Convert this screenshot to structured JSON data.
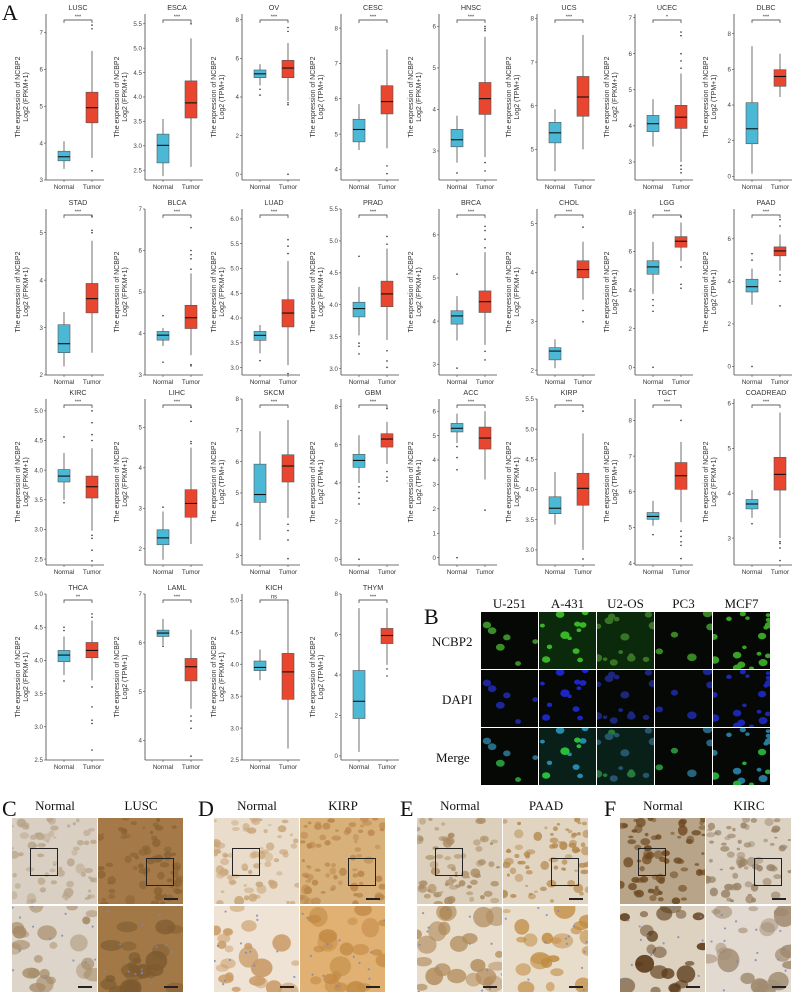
{
  "panels": {
    "A": "A",
    "B": "B",
    "C": "C",
    "D": "D",
    "E": "E",
    "F": "F"
  },
  "common": {
    "ylabel_main": "The expression of NCBP2",
    "ylabel_fpkm": "Log2 (FPKM+1)",
    "ylabel_tpm": "Log2 (TPM+1)",
    "x_categories": [
      "Normal",
      "Tumor"
    ],
    "colors": {
      "normal": "#4BB8D6",
      "tumor": "#E8462F"
    }
  },
  "chart_data": [
    {
      "type": "box",
      "title": "LUSC",
      "unit": "FPKM",
      "sig": "***",
      "ylim": [
        3,
        7.5
      ],
      "ticks": [
        3,
        4,
        5,
        6,
        7
      ],
      "normal": {
        "min": 3.3,
        "q1": 3.52,
        "med": 3.63,
        "q3": 3.78,
        "max": 4.05
      },
      "tumor": {
        "min": 3.6,
        "q1": 4.55,
        "med": 4.96,
        "q3": 5.38,
        "max": 6.5,
        "outliers": [
          7.1,
          7.2,
          3.25
        ]
      }
    },
    {
      "type": "box",
      "title": "ESCA",
      "unit": "FPKM",
      "sig": "***",
      "ylim": [
        2.3,
        5.7
      ],
      "ticks": [
        2.5,
        3.0,
        3.5,
        4.0,
        4.5,
        5.0,
        5.5
      ],
      "normal": {
        "min": 2.38,
        "q1": 2.65,
        "med": 3.01,
        "q3": 3.24,
        "max": 3.55
      },
      "tumor": {
        "min": 2.57,
        "q1": 3.57,
        "med": 3.88,
        "q3": 4.33,
        "max": 5.2,
        "outliers": [
          5.5
        ]
      }
    },
    {
      "type": "box",
      "title": "OV",
      "unit": "TPM",
      "sig": "***",
      "ylim": [
        -0.3,
        8.3
      ],
      "ticks": [
        0,
        2,
        4,
        6,
        8
      ],
      "normal": {
        "min": 4.6,
        "q1": 5.0,
        "med": 5.2,
        "q3": 5.4,
        "max": 5.7,
        "outliers": [
          4.4,
          4.1
        ]
      },
      "tumor": {
        "min": 3.8,
        "q1": 5.0,
        "med": 5.5,
        "q3": 5.9,
        "max": 6.8,
        "outliers": [
          7.6,
          7.4,
          3.6,
          3.7,
          0.0
        ]
      }
    },
    {
      "type": "box",
      "title": "CESC",
      "unit": "TPM",
      "sig": "***",
      "ylim": [
        3.7,
        8.4
      ],
      "ticks": [
        4,
        5,
        6,
        7,
        8
      ],
      "normal": {
        "min": 4.55,
        "q1": 4.78,
        "med": 5.13,
        "q3": 5.42,
        "max": 5.85
      },
      "tumor": {
        "min": 4.6,
        "q1": 5.57,
        "med": 5.92,
        "q3": 6.37,
        "max": 7.4,
        "outliers": [
          4.1,
          3.88
        ]
      }
    },
    {
      "type": "box",
      "title": "HNSC",
      "unit": "FPKM",
      "sig": "***",
      "ylim": [
        2.3,
        6.3
      ],
      "ticks": [
        3,
        4,
        5,
        6
      ],
      "normal": {
        "min": 2.72,
        "q1": 3.1,
        "med": 3.27,
        "q3": 3.52,
        "max": 3.85,
        "outliers": [
          2.47
        ]
      },
      "tumor": {
        "min": 2.85,
        "q1": 3.88,
        "med": 4.26,
        "q3": 4.65,
        "max": 5.75,
        "outliers": [
          5.9,
          5.95,
          6.0,
          2.72,
          2.52
        ]
      }
    },
    {
      "type": "box",
      "title": "UCS",
      "unit": "TPM",
      "sig": "***",
      "ylim": [
        4.3,
        8.1
      ],
      "ticks": [
        5,
        6,
        7,
        8
      ],
      "normal": {
        "min": 4.5,
        "q1": 5.15,
        "med": 5.38,
        "q3": 5.62,
        "max": 5.92
      },
      "tumor": {
        "min": 5.0,
        "q1": 5.76,
        "med": 6.2,
        "q3": 6.67,
        "max": 7.62
      }
    },
    {
      "type": "box",
      "title": "UCEC",
      "unit": "FPKM",
      "sig": "*",
      "ylim": [
        2.5,
        7.1
      ],
      "ticks": [
        3,
        4,
        5,
        6,
        7
      ],
      "normal": {
        "min": 3.43,
        "q1": 3.84,
        "med": 4.06,
        "q3": 4.29,
        "max": 4.74
      },
      "tumor": {
        "min": 3.0,
        "q1": 3.93,
        "med": 4.24,
        "q3": 4.57,
        "max": 5.45,
        "outliers": [
          5.6,
          5.8,
          6.0,
          6.5,
          6.6,
          2.7,
          2.8,
          2.9
        ]
      }
    },
    {
      "type": "box",
      "title": "DLBC",
      "unit": "TPM",
      "sig": "***",
      "ylim": [
        -0.2,
        9.1
      ],
      "ticks": [
        0,
        2,
        4,
        6,
        8
      ],
      "normal": {
        "min": 0.15,
        "q1": 1.83,
        "med": 2.67,
        "q3": 4.13,
        "max": 7.3
      },
      "tumor": {
        "min": 4.45,
        "q1": 5.05,
        "med": 5.6,
        "q3": 5.98,
        "max": 6.87
      }
    },
    {
      "type": "box",
      "title": "STAD",
      "unit": "FPKM",
      "sig": "***",
      "ylim": [
        2,
        5.5
      ],
      "ticks": [
        2,
        3,
        4,
        5
      ],
      "normal": {
        "min": 2.18,
        "q1": 2.47,
        "med": 2.66,
        "q3": 3.06,
        "max": 3.33
      },
      "tumor": {
        "min": 2.47,
        "q1": 3.31,
        "med": 3.61,
        "q3": 3.93,
        "max": 4.83,
        "outliers": [
          5.0,
          5.05,
          5.35
        ]
      }
    },
    {
      "type": "box",
      "title": "BLCA",
      "unit": "FPKM",
      "sig": "***",
      "ylim": [
        3,
        7
      ],
      "ticks": [
        3,
        4,
        5,
        6,
        7
      ],
      "normal": {
        "min": 3.7,
        "q1": 3.84,
        "med": 3.96,
        "q3": 4.05,
        "max": 4.13,
        "outliers": [
          4.43,
          3.31
        ]
      },
      "tumor": {
        "min": 3.48,
        "q1": 4.12,
        "med": 4.38,
        "q3": 4.68,
        "max": 5.45,
        "outliers": [
          5.55,
          5.8,
          5.9,
          6.0,
          6.55,
          3.25,
          3.22
        ]
      }
    },
    {
      "type": "box",
      "title": "LUAD",
      "unit": "FPKM",
      "sig": "***",
      "ylim": [
        2.85,
        6.2
      ],
      "ticks": [
        3.0,
        3.5,
        4.0,
        4.5,
        5.0,
        5.5,
        6.0
      ],
      "normal": {
        "min": 3.29,
        "q1": 3.55,
        "med": 3.65,
        "q3": 3.73,
        "max": 3.86,
        "outliers": [
          3.14
        ]
      },
      "tumor": {
        "min": 3.05,
        "q1": 3.82,
        "med": 4.1,
        "q3": 4.37,
        "max": 5.15,
        "outliers": [
          5.3,
          5.45,
          5.58,
          2.88
        ]
      }
    },
    {
      "type": "box",
      "title": "PRAD",
      "unit": "FPKM",
      "sig": "***",
      "ylim": [
        2.9,
        5.5
      ],
      "ticks": [
        3.0,
        3.5,
        4.0,
        4.5,
        5.0,
        5.5
      ],
      "normal": {
        "min": 3.52,
        "q1": 3.81,
        "med": 3.94,
        "q3": 4.04,
        "max": 4.28,
        "outliers": [
          4.76,
          3.4,
          3.35,
          3.23
        ]
      },
      "tumor": {
        "min": 3.45,
        "q1": 3.97,
        "med": 4.17,
        "q3": 4.37,
        "max": 4.88,
        "outliers": [
          5.07,
          4.95,
          3.28,
          3.12,
          3.02
        ]
      }
    },
    {
      "type": "box",
      "title": "BRCA",
      "unit": "FPKM",
      "sig": "***",
      "ylim": [
        2.75,
        6.6
      ],
      "ticks": [
        3,
        4,
        5,
        6
      ],
      "normal": {
        "min": 3.55,
        "q1": 3.93,
        "med": 4.12,
        "q3": 4.24,
        "max": 4.58,
        "outliers": [
          5.09,
          2.91
        ]
      },
      "tumor": {
        "min": 3.45,
        "q1": 4.2,
        "med": 4.45,
        "q3": 4.7,
        "max": 5.6,
        "outliers": [
          5.7,
          5.9,
          6.1,
          6.2,
          3.3,
          3.1
        ]
      }
    },
    {
      "type": "box",
      "title": "CHOL",
      "unit": "FPKM",
      "sig": "***",
      "ylim": [
        1.9,
        5.3
      ],
      "ticks": [
        2,
        3,
        4,
        5
      ],
      "normal": {
        "min": 2.04,
        "q1": 2.21,
        "med": 2.39,
        "q3": 2.46,
        "max": 2.63
      },
      "tumor": {
        "min": 3.44,
        "q1": 3.89,
        "med": 4.06,
        "q3": 4.24,
        "max": 4.63,
        "outliers": [
          4.93,
          3.22,
          2.99
        ]
      }
    },
    {
      "type": "box",
      "title": "LGG",
      "unit": "TPM",
      "sig": "***",
      "ylim": [
        -0.4,
        8.2
      ],
      "ticks": [
        0,
        2,
        4,
        6,
        8
      ],
      "normal": {
        "min": 3.8,
        "q1": 4.82,
        "med": 5.2,
        "q3": 5.52,
        "max": 6.5,
        "outliers": [
          3.5,
          3.2,
          2.9,
          0.0
        ]
      },
      "tumor": {
        "min": 5.5,
        "q1": 6.22,
        "med": 6.53,
        "q3": 6.77,
        "max": 7.5,
        "outliers": [
          7.8,
          5.2,
          4.3,
          4.1
        ]
      }
    },
    {
      "type": "box",
      "title": "PAAD",
      "unit": "TPM",
      "sig": "***",
      "ylim": [
        -0.4,
        7.4
      ],
      "ticks": [
        0,
        2,
        4,
        6
      ],
      "normal": {
        "min": 2.9,
        "q1": 3.5,
        "med": 3.75,
        "q3": 4.1,
        "max": 4.6,
        "outliers": [
          5.0,
          5.3,
          0.0
        ]
      },
      "tumor": {
        "min": 4.5,
        "q1": 5.2,
        "med": 5.43,
        "q3": 5.62,
        "max": 6.2,
        "outliers": [
          6.6,
          6.9,
          4.3,
          4.0,
          2.85
        ]
      }
    },
    {
      "type": "box",
      "title": "KIRC",
      "unit": "FPKM",
      "sig": "***",
      "ylim": [
        2.4,
        5.2
      ],
      "ticks": [
        2.5,
        3.0,
        3.5,
        4.0,
        4.5,
        5.0
      ],
      "normal": {
        "min": 3.5,
        "q1": 3.8,
        "med": 3.9,
        "q3": 4.01,
        "max": 4.29,
        "outliers": [
          4.56,
          3.45
        ]
      },
      "tumor": {
        "min": 2.98,
        "q1": 3.53,
        "med": 3.72,
        "q3": 3.9,
        "max": 4.37,
        "outliers": [
          4.5,
          4.6,
          4.8,
          5.0,
          2.9,
          2.85,
          2.65,
          2.47
        ]
      }
    },
    {
      "type": "box",
      "title": "LIHC",
      "unit": "FPKM",
      "sig": "***",
      "ylim": [
        1.6,
        5.7
      ],
      "ticks": [
        2,
        3,
        4,
        5
      ],
      "normal": {
        "min": 1.73,
        "q1": 2.1,
        "med": 2.27,
        "q3": 2.47,
        "max": 2.92,
        "outliers": [
          3.03
        ]
      },
      "tumor": {
        "min": 2.12,
        "q1": 2.78,
        "med": 3.12,
        "q3": 3.46,
        "max": 4.5,
        "outliers": [
          4.6,
          4.65,
          5.15,
          5.5
        ]
      }
    },
    {
      "type": "box",
      "title": "SKCM",
      "unit": "TPM",
      "sig": "***",
      "ylim": [
        2.7,
        8
      ],
      "ticks": [
        3,
        4,
        5,
        6,
        7,
        8
      ],
      "normal": {
        "min": 3.5,
        "q1": 4.7,
        "med": 4.95,
        "q3": 5.92,
        "max": 6.97
      },
      "tumor": {
        "min": 4.2,
        "q1": 5.35,
        "med": 5.86,
        "q3": 6.22,
        "max": 7.33,
        "outliers": [
          4.0,
          3.8,
          3.5,
          2.9
        ]
      }
    },
    {
      "type": "box",
      "title": "GBM",
      "unit": "TPM",
      "sig": "***",
      "ylim": [
        -0.3,
        8.4
      ],
      "ticks": [
        0,
        2,
        4,
        6,
        8
      ],
      "normal": {
        "min": 4.0,
        "q1": 4.82,
        "med": 5.18,
        "q3": 5.5,
        "max": 6.5,
        "outliers": [
          3.8,
          3.5,
          3.2,
          2.9,
          0.0
        ]
      },
      "tumor": {
        "min": 5.0,
        "q1": 5.88,
        "med": 6.3,
        "q3": 6.58,
        "max": 7.2,
        "outliers": [
          7.9,
          4.6,
          4.3,
          4.1
        ]
      }
    },
    {
      "type": "box",
      "title": "ACC",
      "unit": "TPM",
      "sig": "***",
      "ylim": [
        -0.3,
        6.5
      ],
      "ticks": [
        0,
        1,
        2,
        3,
        4,
        5,
        6
      ],
      "normal": {
        "min": 4.7,
        "q1": 5.15,
        "med": 5.3,
        "q3": 5.5,
        "max": 5.9,
        "outliers": [
          4.55,
          4.1,
          3.6,
          0.0
        ]
      },
      "tumor": {
        "min": 3.2,
        "q1": 4.45,
        "med": 4.9,
        "q3": 5.35,
        "max": 6.0,
        "outliers": [
          1.95
        ]
      }
    },
    {
      "type": "box",
      "title": "KIRP",
      "unit": "FPKM",
      "sig": "***",
      "ylim": [
        2.75,
        5.5
      ],
      "ticks": [
        3.0,
        3.5,
        4.0,
        4.5,
        5.0,
        5.5
      ],
      "normal": {
        "min": 3.42,
        "q1": 3.6,
        "med": 3.69,
        "q3": 3.88,
        "max": 4.29
      },
      "tumor": {
        "min": 3.0,
        "q1": 3.74,
        "med": 4.02,
        "q3": 4.27,
        "max": 4.93,
        "outliers": [
          5.3,
          2.85
        ]
      }
    },
    {
      "type": "box",
      "title": "TGCT",
      "unit": "TPM",
      "sig": "***",
      "ylim": [
        3.95,
        8.6
      ],
      "ticks": [
        4,
        5,
        6,
        7,
        8
      ],
      "normal": {
        "min": 5.05,
        "q1": 5.23,
        "med": 5.31,
        "q3": 5.42,
        "max": 5.75,
        "outliers": [
          4.8
        ]
      },
      "tumor": {
        "min": 5.15,
        "q1": 6.07,
        "med": 6.45,
        "q3": 6.82,
        "max": 7.4,
        "outliers": [
          8.0,
          4.9,
          4.75,
          4.6,
          4.5,
          4.13
        ]
      }
    },
    {
      "type": "box",
      "title": "COADREAD",
      "unit": "FPKM",
      "sig": "***",
      "ylim": [
        2.4,
        6.1
      ],
      "ticks": [
        3,
        4,
        5,
        6
      ],
      "normal": {
        "min": 3.45,
        "q1": 3.65,
        "med": 3.76,
        "q3": 3.86,
        "max": 4.07,
        "outliers": [
          3.32
        ]
      },
      "tumor": {
        "min": 3.0,
        "q1": 4.07,
        "med": 4.42,
        "q3": 4.8,
        "max": 5.8,
        "outliers": [
          2.92,
          2.88,
          2.78,
          2.5
        ]
      }
    },
    {
      "type": "box",
      "title": "THCA",
      "unit": "FPKM",
      "sig": "**",
      "ylim": [
        2.5,
        5.0
      ],
      "ticks": [
        2.5,
        3.0,
        3.5,
        4.0,
        4.5,
        5.0
      ],
      "normal": {
        "min": 3.78,
        "q1": 3.98,
        "med": 4.08,
        "q3": 4.15,
        "max": 4.36,
        "outliers": [
          4.45,
          4.5,
          3.69
        ]
      },
      "tumor": {
        "min": 3.7,
        "q1": 4.04,
        "med": 4.15,
        "q3": 4.27,
        "max": 4.6,
        "outliers": [
          4.7,
          4.65,
          3.6,
          3.3,
          3.1,
          3.05,
          2.65
        ]
      }
    },
    {
      "type": "box",
      "title": "LAML",
      "unit": "TPM",
      "sig": "***",
      "ylim": [
        3.6,
        7
      ],
      "ticks": [
        4,
        5,
        6,
        7
      ],
      "normal": {
        "min": 5.95,
        "q1": 6.13,
        "med": 6.2,
        "q3": 6.26,
        "max": 6.49,
        "outliers": [
          5.93
        ]
      },
      "tumor": {
        "min": 4.65,
        "q1": 5.22,
        "med": 5.51,
        "q3": 5.68,
        "max": 6.27,
        "outliers": [
          4.5,
          4.4,
          4.25,
          3.68
        ]
      }
    },
    {
      "type": "box",
      "title": "KICH",
      "unit": "FPKM",
      "sig": "ns",
      "ylim": [
        2.5,
        5.1
      ],
      "ticks": [
        2.5,
        3.0,
        3.5,
        4.0,
        4.5,
        5.0
      ],
      "normal": {
        "min": 3.75,
        "q1": 3.9,
        "med": 3.95,
        "q3": 4.05,
        "max": 4.23
      },
      "tumor": {
        "min": 2.68,
        "q1": 3.45,
        "med": 3.88,
        "q3": 4.17,
        "max": 4.97
      }
    },
    {
      "type": "box",
      "title": "THYM",
      "unit": "TPM",
      "sig": "***",
      "ylim": [
        -0.2,
        8
      ],
      "ticks": [
        0,
        2,
        4,
        6,
        8
      ],
      "normal": {
        "min": 0.2,
        "q1": 1.85,
        "med": 2.7,
        "q3": 4.22,
        "max": 7.3
      },
      "tumor": {
        "min": 4.5,
        "q1": 5.55,
        "med": 5.95,
        "q3": 6.3,
        "max": 7.3,
        "outliers": [
          4.3,
          3.95
        ]
      }
    }
  ],
  "panel_B": {
    "columns": [
      "U-251",
      "A-431",
      "U2-OS",
      "PC3",
      "MCF7"
    ],
    "rows": [
      "NCBP2",
      "DAPI",
      "Merge"
    ]
  },
  "panel_C": {
    "labels": [
      "Normal",
      "LUSC"
    ]
  },
  "panel_D": {
    "labels": [
      "Normal",
      "KIRP"
    ]
  },
  "panel_E": {
    "labels": [
      "Normal",
      "PAAD"
    ]
  },
  "panel_F": {
    "labels": [
      "Normal",
      "KIRC"
    ]
  }
}
